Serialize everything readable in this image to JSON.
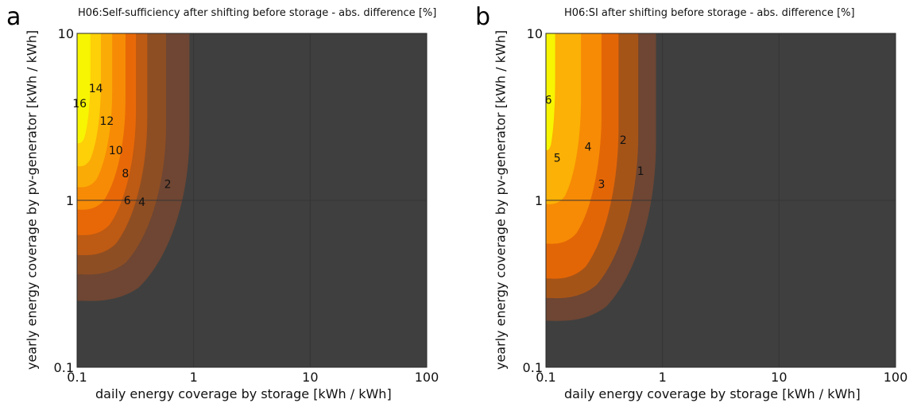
{
  "panels": [
    {
      "letter": "a",
      "chart_title": "H06:Self-sufficiency after shifting before storage - abs. difference [%]"
    },
    {
      "letter": "b",
      "chart_title": "H06:SI after shifting before storage - abs. difference [%]"
    }
  ],
  "chart_data": [
    {
      "type": "heatmap",
      "title": "H06:Self-sufficiency after shifting before storage - abs. difference [%]",
      "xlabel": "daily energy coverage by storage [kWh / kWh]",
      "ylabel": "yearly energy coverage by pv-generator [kWh / kWh]",
      "xscale": "log",
      "yscale": "log",
      "xlim": [
        0.1,
        100
      ],
      "ylim": [
        0.1,
        10
      ],
      "xticks": [
        "0.1",
        "1",
        "10",
        "100"
      ],
      "yticks": [
        "0.1",
        "1",
        "10"
      ],
      "background_color": "#3f3f3f",
      "contour_levels": [
        2,
        4,
        6,
        8,
        10,
        12,
        14,
        16
      ],
      "fill_colors": [
        "#6e4633",
        "#8e4e23",
        "#bd5a13",
        "#e86807",
        "#f78b05",
        "#fbab05",
        "#fdd008",
        "#f7f502"
      ],
      "level_bounds": [
        {
          "level": 2,
          "ymin": 0.25,
          "xmax": 0.92
        },
        {
          "level": 4,
          "ymin": 0.36,
          "xmax": 0.58
        },
        {
          "level": 6,
          "ymin": 0.47,
          "xmax": 0.4
        },
        {
          "level": 8,
          "ymin": 0.62,
          "xmax": 0.32
        },
        {
          "level": 10,
          "ymin": 0.88,
          "xmax": 0.26
        },
        {
          "level": 12,
          "ymin": 1.2,
          "xmax": 0.2
        },
        {
          "level": 14,
          "ymin": 1.6,
          "xmax": 0.16
        },
        {
          "level": 16,
          "ymin": 2.2,
          "xmax": 0.13
        }
      ],
      "contour_labels": [
        {
          "text": "16",
          "x": 0.105,
          "y": 3.8
        },
        {
          "text": "14",
          "x": 0.145,
          "y": 4.7
        },
        {
          "text": "12",
          "x": 0.18,
          "y": 3.0
        },
        {
          "text": "10",
          "x": 0.215,
          "y": 2.0
        },
        {
          "text": "8",
          "x": 0.26,
          "y": 1.45
        },
        {
          "text": "6",
          "x": 0.27,
          "y": 1.0
        },
        {
          "text": "4",
          "x": 0.36,
          "y": 0.98
        },
        {
          "text": "2",
          "x": 0.6,
          "y": 1.25
        }
      ]
    },
    {
      "type": "heatmap",
      "title": "H06:SI after shifting before storage - abs. difference [%]",
      "xlabel": "daily energy coverage by storage [kWh / kWh]",
      "ylabel": "yearly energy coverage by pv-generator [kWh / kWh]",
      "xscale": "log",
      "yscale": "log",
      "xlim": [
        0.1,
        100
      ],
      "ylim": [
        0.1,
        10
      ],
      "xticks": [
        "0.1",
        "1",
        "10",
        "100"
      ],
      "yticks": [
        "0.1",
        "1",
        "10"
      ],
      "background_color": "#3f3f3f",
      "contour_levels": [
        1,
        2,
        3,
        4,
        5,
        6
      ],
      "fill_colors": [
        "#6e4633",
        "#a55418",
        "#e36606",
        "#f78b05",
        "#fbb105",
        "#f7f502"
      ],
      "level_bounds": [
        {
          "level": 1,
          "ymin": 0.19,
          "xmax": 0.88
        },
        {
          "level": 2,
          "ymin": 0.26,
          "xmax": 0.62
        },
        {
          "level": 3,
          "ymin": 0.34,
          "xmax": 0.42
        },
        {
          "level": 4,
          "ymin": 0.55,
          "xmax": 0.3
        },
        {
          "level": 5,
          "ymin": 0.95,
          "xmax": 0.2
        },
        {
          "level": 6,
          "ymin": 2.0,
          "xmax": 0.12
        }
      ],
      "contour_labels": [
        {
          "text": "6",
          "x": 0.105,
          "y": 4.0
        },
        {
          "text": "5",
          "x": 0.125,
          "y": 1.8
        },
        {
          "text": "4",
          "x": 0.23,
          "y": 2.1
        },
        {
          "text": "3",
          "x": 0.3,
          "y": 1.25
        },
        {
          "text": "2",
          "x": 0.46,
          "y": 2.3
        },
        {
          "text": "1",
          "x": 0.65,
          "y": 1.5
        }
      ]
    }
  ]
}
